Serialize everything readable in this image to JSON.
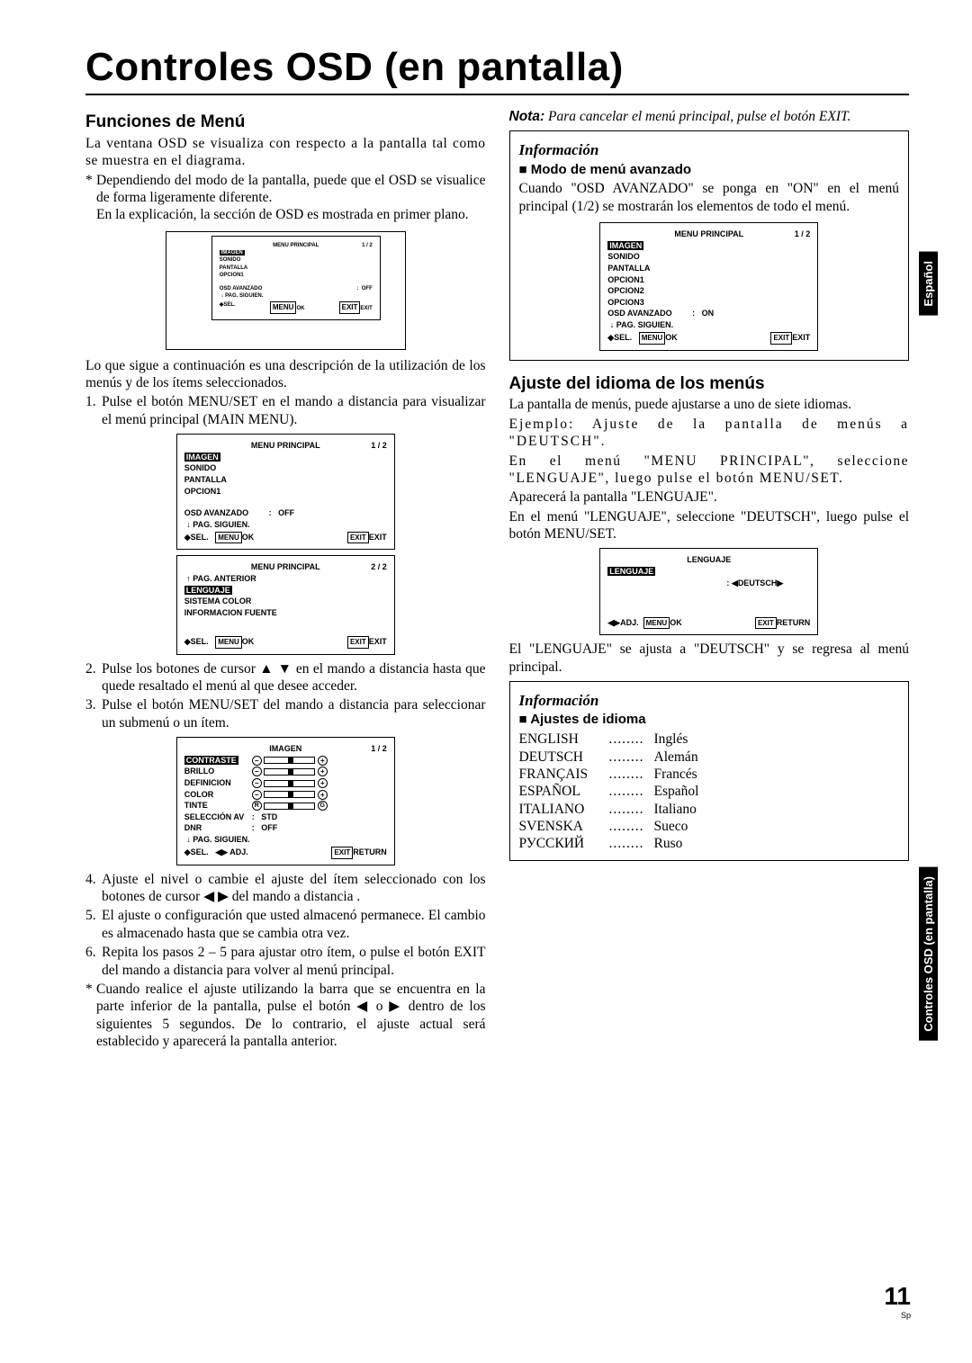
{
  "title": "Controles OSD (en pantalla)",
  "leftCol": {
    "h1": "Funciones de Menú",
    "p1": "La ventana OSD se visualiza con respecto a la pantalla tal como se muestra en el diagrama.",
    "ast1a": "Dependiendo del modo de la pantalla, puede que el OSD se visualice de forma ligeramente diferente.",
    "ast1b": "En la explicación, la sección de OSD es mostrada en primer plano.",
    "p2": "Lo que sigue a continuación es una descripción de la utilización de los menús y de los ítems seleccionados.",
    "s1": "Pulse el botón MENU/SET en el mando a distancia para visualizar el menú principal (MAIN MENU).",
    "s2": "Pulse los botones de cursor ▲ ▼ en el mando a distancia hasta que quede resaltado el menú al que desee acceder.",
    "s3": "Pulse el botón MENU/SET del mando a distancia para seleccionar un submenú o un ítem.",
    "s4": "Ajuste el nivel o cambie el ajuste del ítem seleccionado con los botones de cursor ◀ ▶ del mando a distancia .",
    "s5": "El ajuste o configuración que usted almacenó permanece. El cambio es almacenado hasta que se cambia otra vez.",
    "s6": "Repita los pasos 2 – 5 para ajustar otro ítem, o pulse el botón EXIT del mando a distancia para volver al menú principal.",
    "ast2": "Cuando realice el ajuste utilizando la barra que se encuentra en la parte inferior de la pantalla, pulse el botón ◀ o ▶ dentro de los siguientes 5 segundos. De lo contrario, el ajuste actual será establecido y aparecerá la pantalla anterior."
  },
  "rightCol": {
    "noteBold": "Nota:",
    "noteRest": " Para cancelar el menú principal, pulse el botón EXIT.",
    "info1": "Información",
    "sub1": "Modo de menú avanzado",
    "p1": "Cuando \"OSD AVANZADO\" se ponga en \"ON\" en el menú principal (1/2) se mostrarán los elementos de todo el menú.",
    "h2": "Ajuste del idioma de los menús",
    "p2": "La pantalla de menús, puede ajustarse a uno de siete idiomas.",
    "p3": "Ejemplo: Ajuste de la pantalla de menús a \"DEUTSCH\".",
    "p4": "En el menú \"MENU PRINCIPAL\", seleccione \"LENGUAJE\", luego pulse el botón MENU/SET.",
    "p5": "Aparecerá la pantalla \"LENGUAJE\".",
    "p6": "En el menú \"LENGUAJE\", seleccione \"DEUTSCH\", luego pulse el botón MENU/SET.",
    "p7": "El \"LENGUAJE\" se ajusta a \"DEUTSCH\" y se regresa al menú principal.",
    "info2": "Información",
    "sub2": "Ajustes de idioma",
    "langs": [
      [
        "ENGLISH",
        "Inglés"
      ],
      [
        "DEUTSCH",
        "Alemán"
      ],
      [
        "FRANÇAIS",
        "Francés"
      ],
      [
        "ESPAÑOL",
        "Español"
      ],
      [
        "ITALIANO",
        "Italiano"
      ],
      [
        "SVENSKA",
        "Sueco"
      ],
      [
        "РУССКИЙ",
        "Ruso"
      ]
    ]
  },
  "osd": {
    "menuPrincipal": "MENU PRINCIPAL",
    "p12": "1 / 2",
    "p22": "2 / 2",
    "imagen": "IMAGEN",
    "sonido": "SONIDO",
    "pantalla": "PANTALLA",
    "opcion1": "OPCION1",
    "opcion2": "OPCION2",
    "opcion3": "OPCION3",
    "osdAvanzado": "OSD AVANZADO",
    "off": "OFF",
    "on": "ON",
    "pagSiguien": "PAG. SIGUIEN.",
    "pagAnterior": "PAG. ANTERIOR",
    "lenguaje": "LENGUAJE",
    "sistemaColor": "SISTEMA COLOR",
    "infoFuente": "INFORMACION FUENTE",
    "sel": "SEL.",
    "menu": "MENU",
    "ok": "OK",
    "exit": "EXIT",
    "return": "RETURN",
    "adj": "ADJ.",
    "contraste": "CONTRASTE",
    "brillo": "BRILLO",
    "definicion": "DEFINICION",
    "color": "COLOR",
    "tinte": "TINTE",
    "seleccionAv": "SELECCIÓN AV",
    "dnr": "DNR",
    "std": "STD",
    "deutsch": "DEUTSCH"
  },
  "sideTab1": "Español",
  "sideTab2": "Controles OSD (en pantalla)",
  "pageNum": "11",
  "pageSp": "Sp"
}
